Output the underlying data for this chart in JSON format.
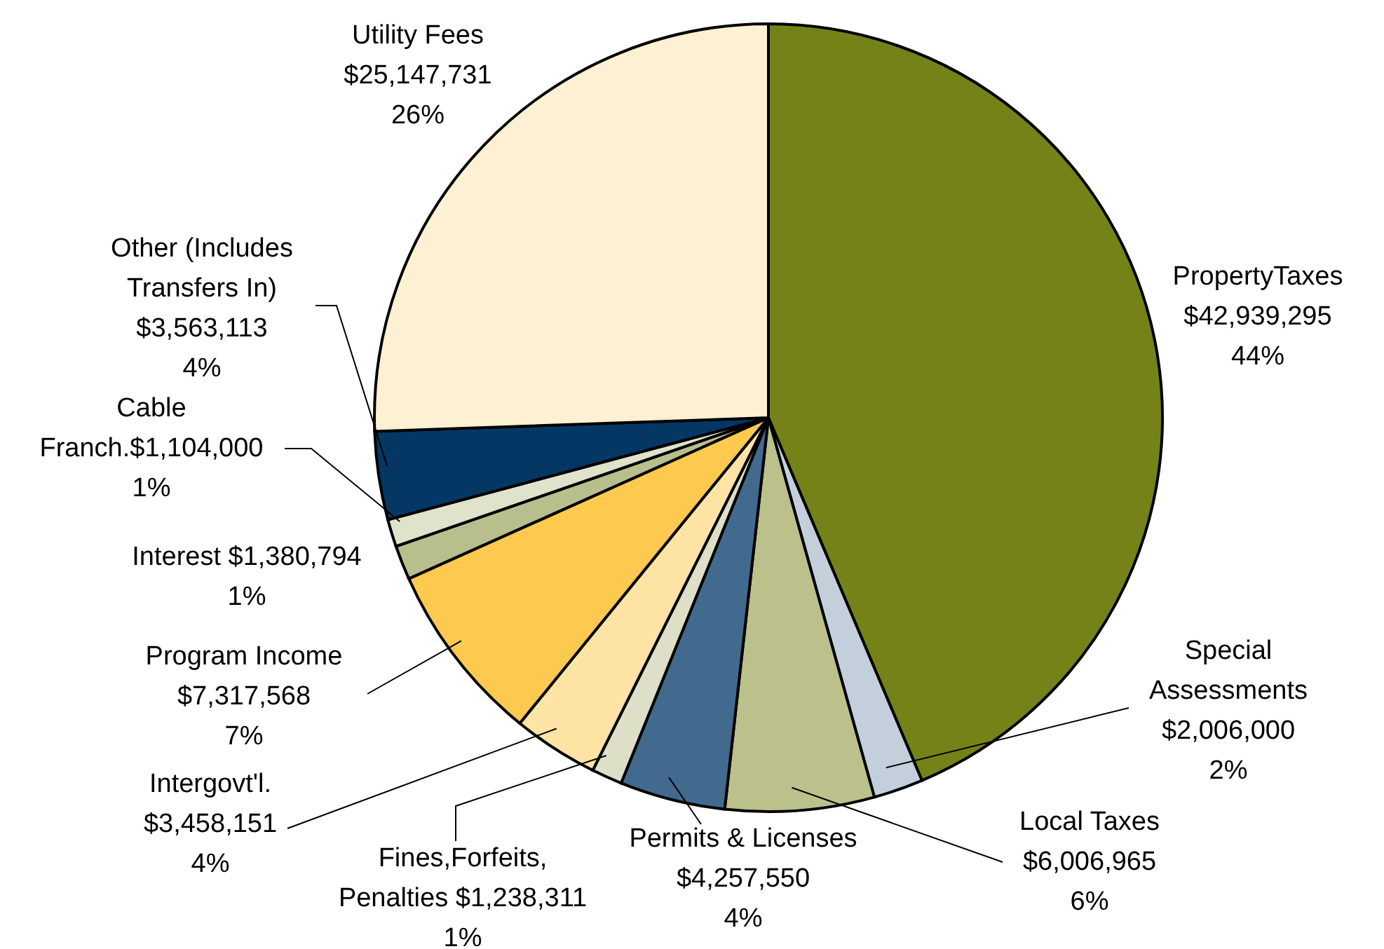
{
  "chart_data": {
    "type": "pie",
    "categories": [
      "PropertyTaxes",
      "Special Assessments",
      "Local Taxes",
      "Permits & Licenses",
      "Fines,Forfeits, Penalties",
      "Intergovt'l.",
      "Program Income",
      "Interest",
      "Cable Franch.",
      "Other (Includes Transfers In)",
      "Utility Fees"
    ],
    "values": [
      42939295,
      2006000,
      6006965,
      4257550,
      1238311,
      3458151,
      7317568,
      1380794,
      1104000,
      3563113,
      25147731
    ],
    "value_labels": [
      "$42,939,295\n44%",
      "$2,006,000\n2%",
      "$6,006,965\n6%",
      "$4,257,550\n4%",
      "$1,238,311\n1%",
      "$3,458,151\n4%",
      "$7,317,568\n7%",
      "$1,380,794\n1%",
      "$1,104,000\n1%",
      "$3,563,113\n4%",
      "$25,147,731\n26%"
    ],
    "colors": [
      "#748218",
      "#c3d0dc",
      "#bcc18c",
      "#426a8f",
      "#dde0c6",
      "#fde4a4",
      "#fec94f",
      "#b8bf8c",
      "#dfe3cc",
      "#043764",
      "#fef0d2"
    ]
  }
}
